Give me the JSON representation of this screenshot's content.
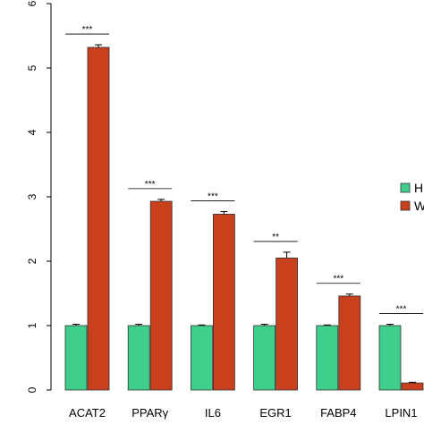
{
  "chart_data": {
    "type": "bar",
    "categories": [
      "ACAT2",
      "PPARγ",
      "IL6",
      "EGR1",
      "FABP4",
      "LPIN1"
    ],
    "series": [
      {
        "name": "H",
        "color": "#3fce8b",
        "values": [
          1.0,
          1.0,
          1.0,
          1.0,
          1.0,
          1.0
        ],
        "errors": [
          0.02,
          0.02,
          0.01,
          0.02,
          0.01,
          0.02
        ]
      },
      {
        "name": "W",
        "color": "#c9401d",
        "values": [
          5.32,
          2.93,
          2.73,
          2.05,
          1.46,
          0.11
        ],
        "errors": [
          0.04,
          0.03,
          0.04,
          0.09,
          0.03,
          0.01
        ]
      }
    ],
    "significance": [
      "***",
      "***",
      "***",
      "**",
      "***",
      "***"
    ],
    "ylim": [
      0,
      6
    ],
    "yticks": [
      "0",
      "1",
      "2",
      "3",
      "4",
      "5",
      "6"
    ],
    "legend_position": "right",
    "title": "",
    "xlabel": "",
    "ylabel": ""
  }
}
